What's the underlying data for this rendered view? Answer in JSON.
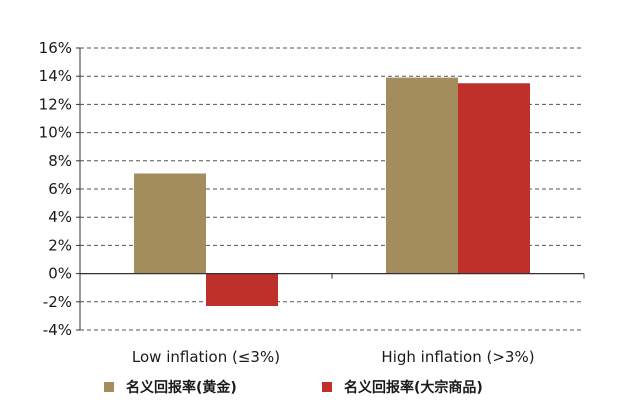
{
  "chart_data": {
    "type": "bar",
    "title": "",
    "xlabel": "",
    "ylabel": "",
    "categories": [
      "Low inflation (≤3%)",
      "High inflation (>3%)"
    ],
    "series": [
      {
        "name": "名义回报率(黄金)",
        "values": [
          7.1,
          13.9
        ],
        "color": "#a38d5c"
      },
      {
        "name": "名义回报率(大宗商品)",
        "values": [
          -2.3,
          13.5
        ],
        "color": "#c0302b"
      }
    ],
    "ylim": [
      -4,
      16
    ],
    "ytick_step": 2,
    "ytick_format": "percent",
    "grid": "dashed horizontal",
    "legend": "bottom"
  }
}
